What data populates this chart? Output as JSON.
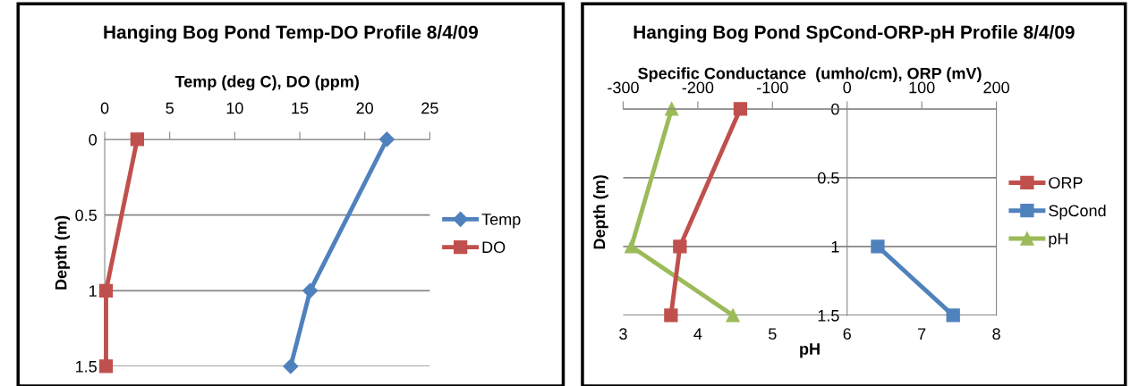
{
  "chart_data": [
    {
      "type": "line",
      "title": "Hanging Bog Pond Temp-DO Profile 8/4/09",
      "xlabel": "Temp (deg C), DO (ppm)",
      "ylabel": "Depth (m)",
      "xlim": [
        0,
        25
      ],
      "xticks": [
        0,
        5,
        10,
        15,
        20,
        25
      ],
      "ylim": [
        1.5,
        0
      ],
      "yticks": [
        0,
        0.5,
        1,
        1.5
      ],
      "grid": "y",
      "legend": "right",
      "series": [
        {
          "name": "Temp",
          "color": "#4f81bd",
          "marker": "diamond",
          "x": [
            21.7,
            15.8,
            14.3
          ],
          "values": [
            0,
            1,
            1.5
          ]
        },
        {
          "name": "DO",
          "color": "#c0504d",
          "marker": "square",
          "x": [
            2.5,
            0.1,
            0.1
          ],
          "values": [
            0,
            1,
            1.5
          ]
        }
      ]
    },
    {
      "type": "line",
      "title": "Hanging Bog Pond SpCond-ORP-pH Profile 8/4/09",
      "x2label": "Specific Conductance  (umho/cm), ORP (mV)",
      "xlabel": "pH",
      "ylabel": "Depth (m)",
      "x2lim": [
        -300,
        200
      ],
      "x2ticks": [
        -300,
        -200,
        -100,
        0,
        100,
        200
      ],
      "xlim": [
        3,
        8
      ],
      "xticks": [
        3,
        4,
        5,
        6,
        7,
        8
      ],
      "ylim": [
        1.5,
        0
      ],
      "yticks": [
        0,
        0.5,
        1,
        1.5
      ],
      "grid": "y",
      "legend": "right",
      "series": [
        {
          "name": "ORP",
          "color": "#c0504d",
          "marker": "square",
          "axis": "x2",
          "x": [
            -143,
            -224,
            -236
          ],
          "values": [
            0,
            1,
            1.5
          ]
        },
        {
          "name": "SpCond",
          "color": "#4f81bd",
          "marker": "square",
          "axis": "x2",
          "x": [
            41,
            142
          ],
          "values": [
            1,
            1.5
          ]
        },
        {
          "name": "pH",
          "color": "#9bbb59",
          "marker": "triangle",
          "x": [
            3.65,
            3.11,
            4.47
          ],
          "values": [
            0,
            1,
            1.5
          ]
        }
      ]
    }
  ]
}
